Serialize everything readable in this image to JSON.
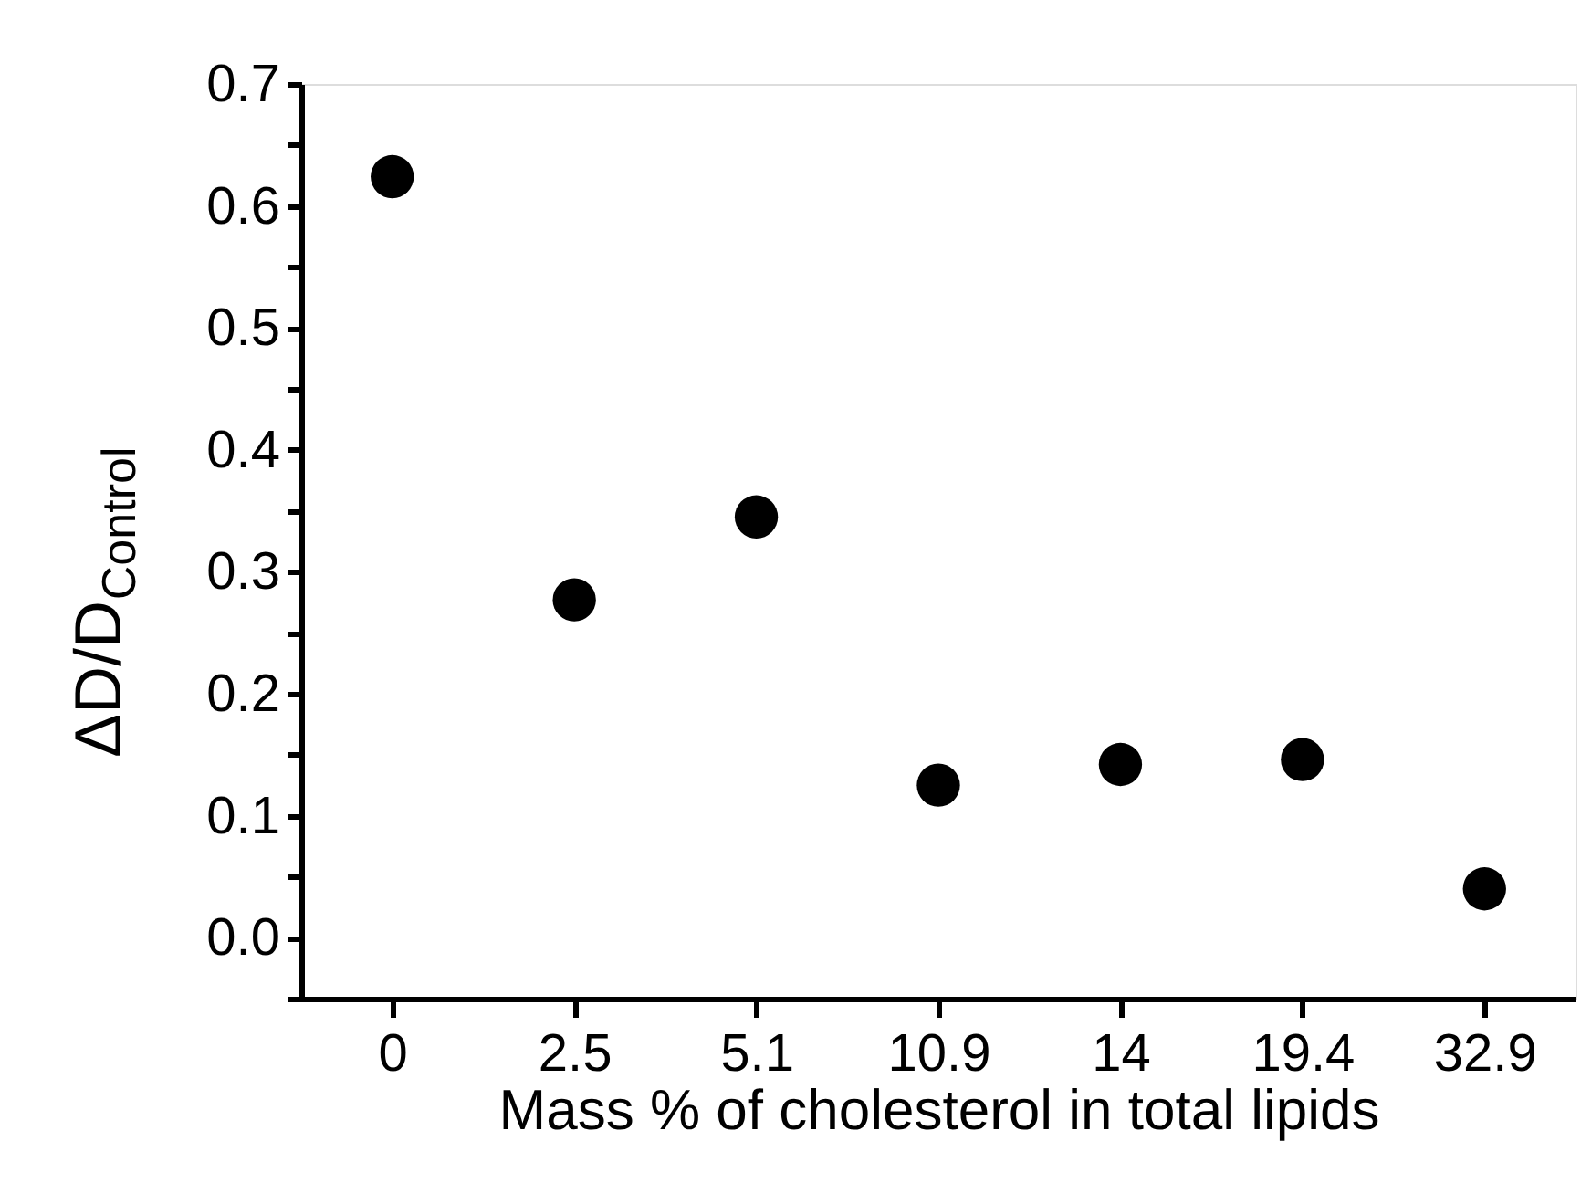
{
  "chart_data": {
    "type": "scatter",
    "xlabel": "Mass % of cholesterol in total lipids",
    "ylabel": "ΔD/D$_{Control}$",
    "categories": [
      "0",
      "2.5",
      "5.1",
      "10.9",
      "14",
      "19.4",
      "32.9"
    ],
    "series": [
      {
        "color": "#000000",
        "values": [
          0.624,
          0.277,
          0.345,
          0.125,
          0.142,
          0.146,
          0.04
        ]
      }
    ],
    "ylim": [
      -0.05,
      0.7
    ],
    "yticks": [
      {
        "value": -0.05,
        "label": null
      },
      {
        "value": 0,
        "label": "0.0"
      },
      {
        "value": 0.05,
        "label": null
      },
      {
        "value": 0.1,
        "label": "0.1"
      },
      {
        "value": 0.15,
        "label": null
      },
      {
        "value": 0.2,
        "label": "0.2"
      },
      {
        "value": 0.25,
        "label": null
      },
      {
        "value": 0.3,
        "label": "0.3"
      },
      {
        "value": 0.35,
        "label": null
      },
      {
        "value": 0.4,
        "label": "0.4"
      },
      {
        "value": 0.45,
        "label": null
      },
      {
        "value": 0.5,
        "label": "0.5"
      },
      {
        "value": 0.55,
        "label": null
      },
      {
        "value": 0.6,
        "label": "0.6"
      },
      {
        "value": 0.65,
        "label": null
      },
      {
        "value": 0.7,
        "label": "0.7"
      }
    ],
    "marker": "circle",
    "grid": false
  }
}
